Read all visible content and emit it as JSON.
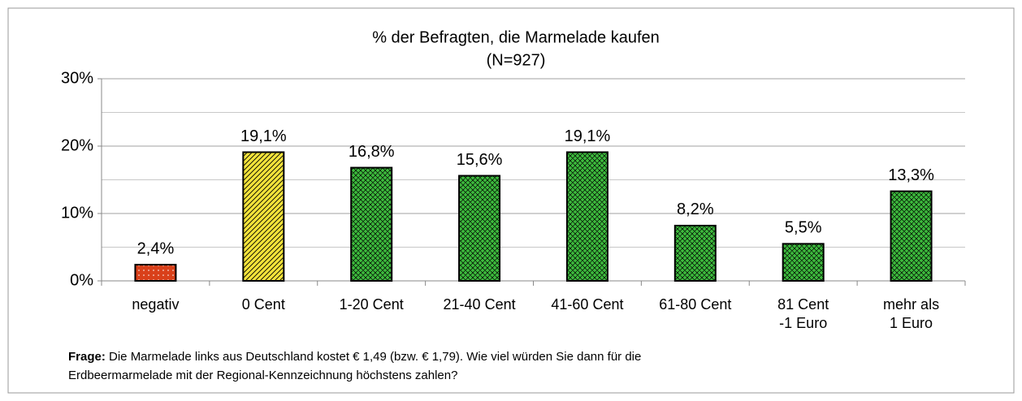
{
  "chart_data": {
    "type": "bar",
    "title": "% der Befragten, die Marmelade kaufen",
    "subtitle": "(N=927)",
    "categories": [
      "negativ",
      "0 Cent",
      "1-20 Cent",
      "21-40 Cent",
      "41-60 Cent",
      "61-80 Cent",
      "81 Cent\n-1 Euro",
      "mehr als\n1 Euro"
    ],
    "values": [
      2.4,
      19.1,
      16.8,
      15.6,
      19.1,
      8.2,
      5.5,
      13.3
    ],
    "value_labels": [
      "2,4%",
      "19,1%",
      "16,8%",
      "15,6%",
      "19,1%",
      "8,2%",
      "5,5%",
      "13,3%"
    ],
    "colors": [
      "#d9401a",
      "#f2e33a",
      "#3dbb3d",
      "#3dbb3d",
      "#3dbb3d",
      "#3dbb3d",
      "#3dbb3d",
      "#3dbb3d"
    ],
    "patterns": [
      "dots",
      "diagonal",
      "crosshatch",
      "crosshatch",
      "crosshatch",
      "crosshatch",
      "crosshatch",
      "crosshatch"
    ],
    "ylim": [
      0,
      30
    ],
    "yticks": [
      {
        "value": 0,
        "label": "0%"
      },
      {
        "value": 10,
        "label": "10%"
      },
      {
        "value": 20,
        "label": "20%"
      },
      {
        "value": 30,
        "label": "30%"
      }
    ],
    "yminor": [
      5,
      15,
      25
    ],
    "grid": true,
    "note_label": "Frage:",
    "note": "Die Marmelade links aus Deutschland kostet € 1,49 (bzw. € 1,79). Wie viel würden Sie dann für die\nErdbeermarmelade mit der Regional-Kennzeichnung höchstens zahlen?"
  }
}
